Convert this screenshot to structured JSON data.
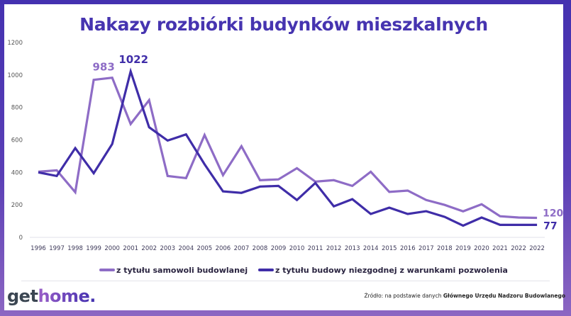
{
  "title": "Nakazy rozbiórki budynków mieszkalnych",
  "colors": {
    "frame_top": "#4431b0",
    "frame_bottom": "#8c66c2",
    "series_light": "#8e6cc6",
    "series_dark": "#3f2da8",
    "title": "#4634b0"
  },
  "legend": {
    "items": [
      {
        "label": "z tytułu samowoli budowlanej",
        "color": "#8e6cc6"
      },
      {
        "label": "z tytułu budowy niezgodnej z warunkami pozwolenia",
        "color": "#3f2da8"
      }
    ]
  },
  "footer": {
    "logo": {
      "part1": "get",
      "part2": "home",
      "part3": "."
    },
    "source_prefix": "Źródło: na podstawie danych ",
    "source_bold": "Głównego Urzędu Nadzoru Budowlanego"
  },
  "chart_data": {
    "type": "line",
    "title": "Nakazy rozbiórki budynków mieszkalnych",
    "xlabel": "",
    "ylabel": "",
    "ylim": [
      0,
      1200
    ],
    "yticks": [
      0,
      200,
      400,
      600,
      800,
      1000,
      1200
    ],
    "grid": false,
    "legend_position": "bottom",
    "categories": [
      "1996",
      "1997",
      "1998",
      "1999",
      "2000",
      "2001",
      "2002",
      "2003",
      "2004",
      "2005",
      "2006",
      "2007",
      "2008",
      "2009",
      "2010",
      "2011",
      "2012",
      "2013",
      "2014",
      "2015",
      "2016",
      "2017",
      "2018",
      "2019",
      "2020",
      "2021",
      "2022",
      "2022"
    ],
    "series": [
      {
        "name": "z tytułu samowoli budowlanej",
        "color": "#8e6cc6",
        "values": [
          404,
          413,
          278,
          970,
          983,
          698,
          845,
          378,
          365,
          630,
          383,
          561,
          352,
          357,
          426,
          343,
          352,
          317,
          404,
          280,
          288,
          230,
          200,
          160,
          204,
          130,
          122,
          120
        ]
      },
      {
        "name": "z tytułu budowy niezgodnej z warunkami pozwolenia",
        "color": "#3f2da8",
        "values": [
          400,
          378,
          550,
          395,
          575,
          1022,
          678,
          596,
          634,
          450,
          283,
          274,
          313,
          317,
          230,
          335,
          191,
          235,
          144,
          183,
          144,
          161,
          126,
          72,
          122,
          77,
          77,
          77
        ]
      }
    ],
    "annotations": [
      {
        "text": "983",
        "series": 0,
        "index": 4
      },
      {
        "text": "1022",
        "series": 1,
        "index": 5
      },
      {
        "text": "120",
        "series": 0,
        "index": 27
      },
      {
        "text": "77",
        "series": 1,
        "index": 27
      }
    ]
  }
}
